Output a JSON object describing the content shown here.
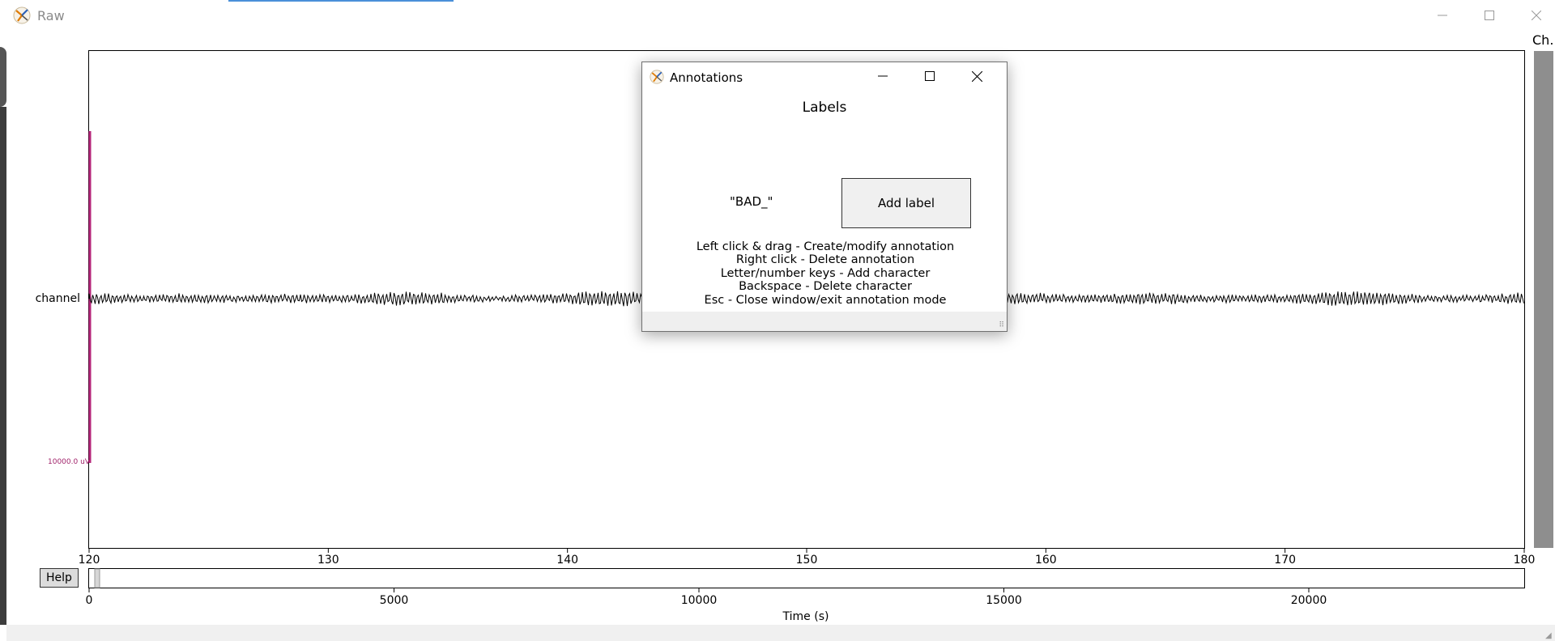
{
  "window": {
    "title": "Raw",
    "channel_panel_label": "Ch."
  },
  "plot": {
    "channel_name": "channel",
    "scale_label": "10000.0 uV",
    "time_ticks": [
      "120",
      "130",
      "140",
      "150",
      "160",
      "170",
      "180"
    ],
    "overview_ticks": [
      "0",
      "5000",
      "10000",
      "15000",
      "20000"
    ],
    "xlabel": "Time (s)"
  },
  "help_button": {
    "label": "Help"
  },
  "annotation_dialog": {
    "title": "Annotations",
    "heading": "Labels",
    "current_label": "\"BAD_\"",
    "add_label_button": "Add label",
    "help_lines": [
      "Left click & drag - Create/modify annotation",
      "Right click - Delete annotation",
      "Letter/number keys - Add character",
      "Backspace - Delete character",
      "Esc - Close window/exit annotation mode"
    ]
  },
  "colors": {
    "scale_bar": "#b5267a",
    "signal": "#000000",
    "scrollbar": "#8e8e8e"
  },
  "icons": [
    "app-icon",
    "minimize-icon",
    "maximize-icon",
    "close-icon"
  ]
}
